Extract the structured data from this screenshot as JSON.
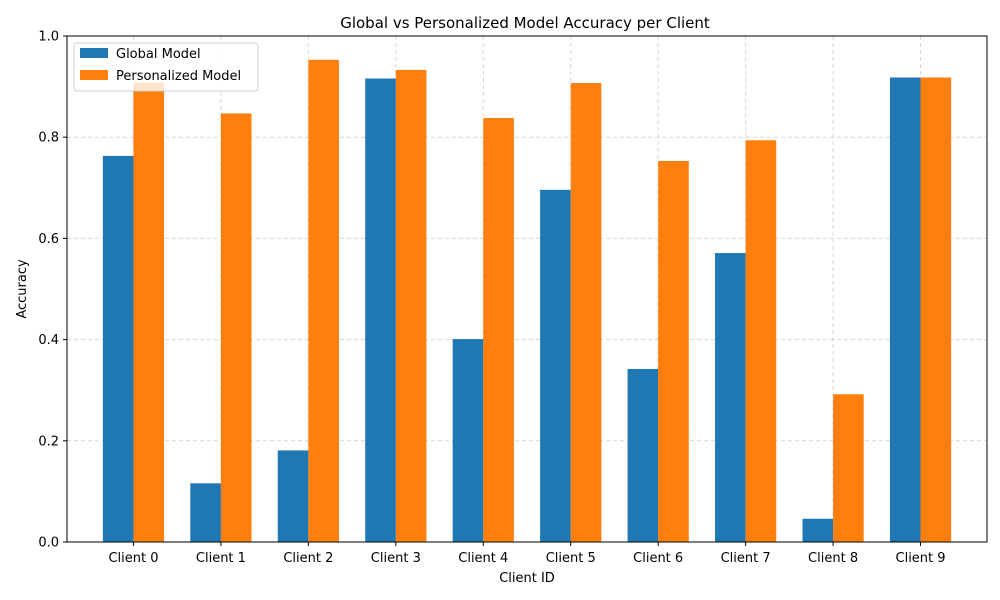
{
  "chart_data": {
    "type": "bar",
    "title": "Global vs Personalized Model Accuracy per Client",
    "xlabel": "Client ID",
    "ylabel": "Accuracy",
    "ylim": [
      0,
      1.0
    ],
    "yticks": [
      0.0,
      0.2,
      0.4,
      0.6,
      0.8,
      1.0
    ],
    "ytick_labels": [
      "0.0",
      "0.2",
      "0.4",
      "0.6",
      "0.8",
      "1.0"
    ],
    "grid": true,
    "legend_position": "top-left",
    "categories": [
      "Client 0",
      "Client 1",
      "Client 2",
      "Client 3",
      "Client 4",
      "Client 5",
      "Client 6",
      "Client 7",
      "Client 8",
      "Client 9"
    ],
    "series": [
      {
        "name": "Global Model",
        "color": "#1f77b4",
        "values": [
          0.763,
          0.116,
          0.181,
          0.916,
          0.401,
          0.696,
          0.342,
          0.571,
          0.046,
          0.918
        ]
      },
      {
        "name": "Personalized Model",
        "color": "#ff7f0e",
        "values": [
          0.908,
          0.847,
          0.953,
          0.933,
          0.838,
          0.907,
          0.753,
          0.794,
          0.292,
          0.918
        ]
      }
    ]
  }
}
